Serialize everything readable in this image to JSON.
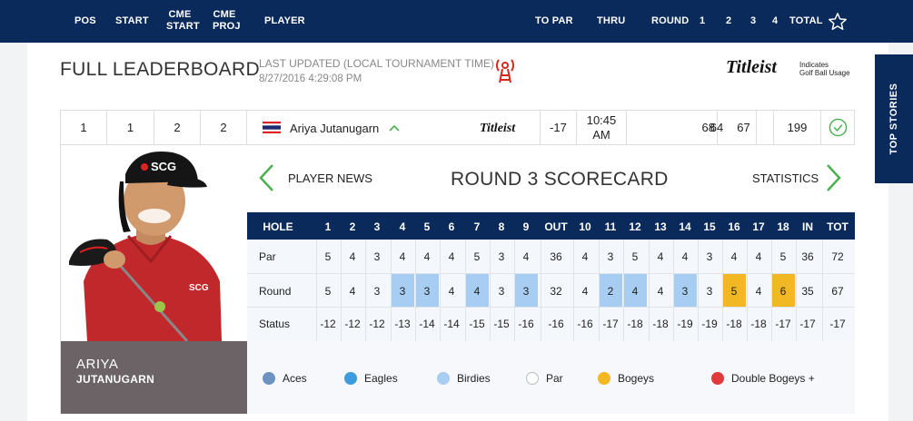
{
  "header": {
    "pos": "POS",
    "start": "START",
    "cme_start_1": "CME",
    "cme_start_2": "START",
    "cme_proj_1": "CME",
    "cme_proj_2": "PROJ",
    "player": "PLAYER",
    "to_par": "TO PAR",
    "thru": "THRU",
    "round": "ROUND",
    "r1": "1",
    "r2": "2",
    "r3": "3",
    "r4": "4",
    "total": "TOTAL"
  },
  "page": {
    "title": "FULL LEADERBOARD",
    "last_updated_label": "LAST UPDATED (LOCAL TOURNAMENT TIME)",
    "last_updated_time": "8/27/2016 4:29:08 PM",
    "titleist_logo": "Titleist",
    "titleist_note_1": "Indicates",
    "titleist_note_2": "Golf Ball Usage",
    "top_stories": "TOP STORIES"
  },
  "player_row": {
    "pos": "1",
    "start": "1",
    "cme_start": "2",
    "cme_proj": "2",
    "name": "Ariya Jutanugarn",
    "ball": "Titleist",
    "to_par": "-17",
    "thru_1": "10:45",
    "thru_2": "AM",
    "r1": "68",
    "r2": "64",
    "r3": "67",
    "r4": "",
    "total": "199"
  },
  "player": {
    "first_name": "ARIYA",
    "last_name": "JUTANUGARN"
  },
  "scorecard": {
    "player_news": "PLAYER NEWS",
    "title": "ROUND 3 SCORECARD",
    "statistics": "STATISTICS",
    "headers": [
      "HOLE",
      "1",
      "2",
      "3",
      "4",
      "5",
      "6",
      "7",
      "8",
      "9",
      "OUT",
      "10",
      "11",
      "12",
      "13",
      "14",
      "15",
      "16",
      "17",
      "18",
      "IN",
      "TOT"
    ],
    "par_label": "Par",
    "round_label": "Round",
    "status_label": "Status",
    "par": [
      "5",
      "4",
      "3",
      "4",
      "4",
      "4",
      "5",
      "3",
      "4",
      "36",
      "4",
      "3",
      "5",
      "4",
      "4",
      "3",
      "4",
      "4",
      "5",
      "36",
      "72"
    ],
    "round": [
      "5",
      "4",
      "3",
      "3",
      "3",
      "4",
      "4",
      "3",
      "3",
      "32",
      "4",
      "2",
      "4",
      "4",
      "3",
      "3",
      "5",
      "4",
      "6",
      "35",
      "67"
    ],
    "status": [
      "-12",
      "-12",
      "-12",
      "-13",
      "-14",
      "-14",
      "-15",
      "-15",
      "-16",
      "-16",
      "-16",
      "-17",
      "-18",
      "-18",
      "-19",
      "-19",
      "-18",
      "-18",
      "-17",
      "-17",
      "-17"
    ]
  },
  "legend": [
    {
      "label": "Aces",
      "color": "#6c94c3"
    },
    {
      "label": "Eagles",
      "color": "#3d9ce0"
    },
    {
      "label": "Birdies",
      "color": "#a8cdf2"
    },
    {
      "label": "Par",
      "color": "#ffffff"
    },
    {
      "label": "Bogeys",
      "color": "#f2b824"
    },
    {
      "label": "Double Bogeys +",
      "color": "#e23a3a"
    }
  ],
  "colors": {
    "navy": "#0b2a5c",
    "birdie": "#a8cdf2",
    "bogey": "#f2b824",
    "green": "#4caf50"
  }
}
